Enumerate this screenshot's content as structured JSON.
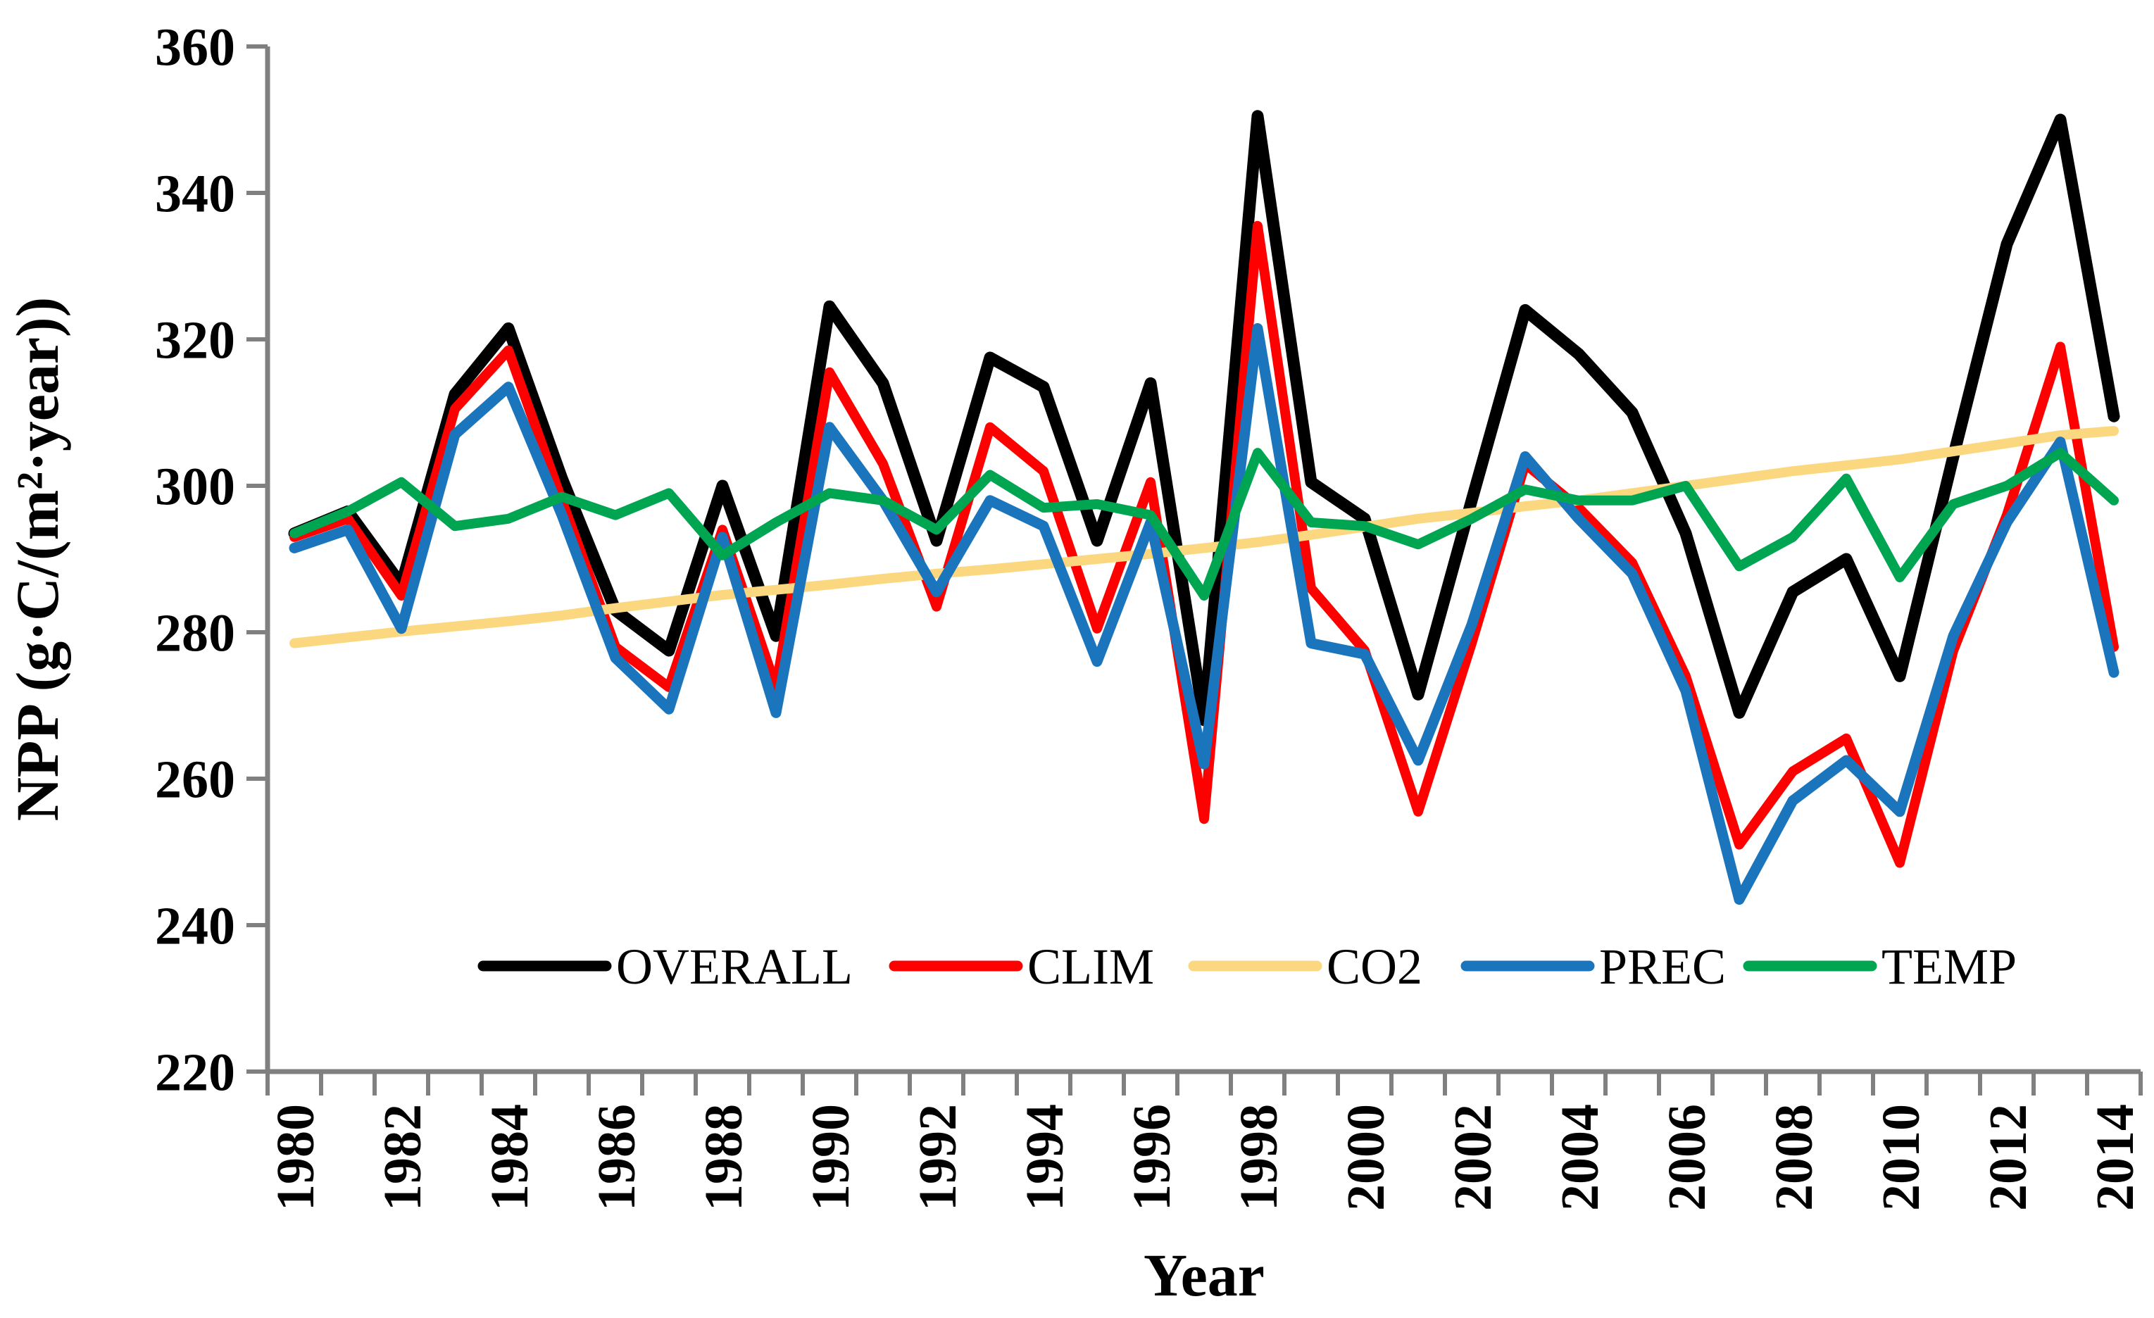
{
  "page": {
    "background": "#FFFFFF"
  },
  "chart_data": {
    "type": "line",
    "title": "",
    "xlabel": "Year",
    "ylabel": "NPP (g·C/(m²·year))",
    "x": [
      1980,
      1981,
      1982,
      1983,
      1984,
      1985,
      1986,
      1987,
      1988,
      1989,
      1990,
      1991,
      1992,
      1993,
      1994,
      1995,
      1996,
      1997,
      1998,
      1999,
      2000,
      2001,
      2002,
      2003,
      2004,
      2005,
      2006,
      2007,
      2008,
      2009,
      2010,
      2011,
      2012,
      2013,
      2014
    ],
    "x_label_every": 2,
    "ylim": [
      220,
      360
    ],
    "ytick_step": 20,
    "grid": false,
    "legend_position": "bottom-center",
    "axis_color": "#808080",
    "text_color": "#000000",
    "series": [
      {
        "name": "OVERALL",
        "color": "#000000",
        "stroke_width": 17,
        "values": [
          293.5,
          296.5,
          286.5,
          312.5,
          321.5,
          301,
          283,
          277.5,
          300,
          279.5,
          324.5,
          314,
          292.5,
          317.5,
          313.5,
          292.5,
          314,
          268,
          350.5,
          300.5,
          295.5,
          271.5,
          298,
          324,
          318,
          310,
          293.5,
          269,
          285.5,
          290,
          274,
          304,
          333,
          350,
          309.5
        ]
      },
      {
        "name": "CLIM",
        "color": "#FF0000",
        "stroke_width": 14,
        "values": [
          293,
          295.5,
          285,
          310.5,
          318.5,
          298,
          278,
          272.5,
          294,
          272.5,
          315.5,
          303,
          283.5,
          308,
          302,
          280.5,
          300.5,
          254.5,
          335.5,
          286,
          277.5,
          255.5,
          278.5,
          303,
          297,
          289.5,
          274,
          251,
          261,
          265.5,
          248.5,
          277.5,
          296,
          319,
          278
        ]
      },
      {
        "name": "CO2",
        "color": "#FBD87F",
        "stroke_width": 14,
        "values": [
          278.5,
          279.3,
          280.1,
          280.8,
          281.5,
          282.3,
          283.3,
          284.2,
          285.1,
          285.8,
          286.5,
          287.3,
          288,
          288.6,
          289.3,
          290,
          290.7,
          291.5,
          292.3,
          293.3,
          294.4,
          295.5,
          296.3,
          297.2,
          298,
          299,
          300,
          301,
          302,
          302.8,
          303.6,
          304.7,
          305.8,
          306.9,
          307.5
        ]
      },
      {
        "name": "PREC",
        "color": "#1B75BC",
        "stroke_width": 15,
        "values": [
          291.5,
          294,
          280.5,
          307,
          313.5,
          296,
          276.5,
          269.5,
          293,
          269,
          308,
          298,
          285.5,
          298,
          294.5,
          276,
          295,
          262,
          321.5,
          278.5,
          277,
          262.5,
          281,
          304,
          295.5,
          288,
          272,
          243.5,
          257,
          262.5,
          255.5,
          279.5,
          295,
          306,
          274.5
        ]
      },
      {
        "name": "TEMP",
        "color": "#00A551",
        "stroke_width": 14,
        "values": [
          293.5,
          296.5,
          300.5,
          294.5,
          295.5,
          298.5,
          296,
          299,
          290.5,
          295,
          299,
          298,
          294,
          301.5,
          297,
          297.5,
          296,
          285,
          304.5,
          295,
          294.5,
          292,
          295.5,
          299.5,
          298,
          298,
          300,
          289,
          293,
          301,
          287.5,
          297.5,
          300,
          304.5,
          298
        ]
      }
    ],
    "legend": [
      "OVERALL",
      "CLIM",
      "CO2",
      "PREC",
      "TEMP"
    ]
  }
}
